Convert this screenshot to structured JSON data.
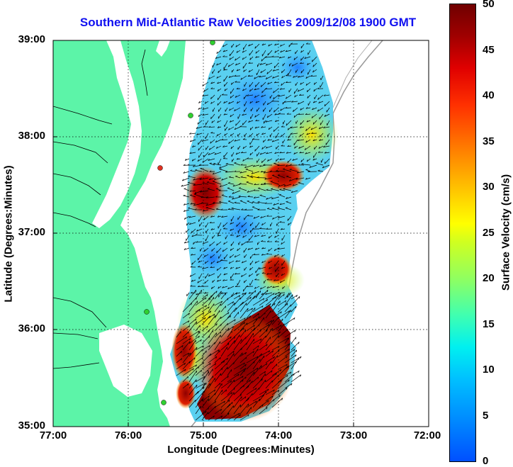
{
  "title": "Southern Mid-Atlantic Raw Velocities 2009/12/08 1900 GMT",
  "xlabel": "Longitude (Degrees:Minutes)",
  "ylabel": "Latitude (Degrees:Minutes)",
  "xticks": [
    "77:00",
    "76:00",
    "75:00",
    "74:00",
    "73:00",
    "72:00"
  ],
  "yticks": [
    "39:00",
    "38:00",
    "37:00",
    "36:00",
    "35:00"
  ],
  "colorbar": {
    "label": "Surface Velocity (cm/s)",
    "ticks": [
      "50",
      "45",
      "40",
      "35",
      "30",
      "25",
      "20",
      "15",
      "10",
      "5",
      "0"
    ],
    "range": [
      0,
      50
    ]
  },
  "colors": {
    "land": "#5cf4a8",
    "title": "#1010f0",
    "grid": "#000000"
  },
  "extent": {
    "lon": [
      -77,
      -72
    ],
    "lat": [
      35,
      39
    ]
  }
}
